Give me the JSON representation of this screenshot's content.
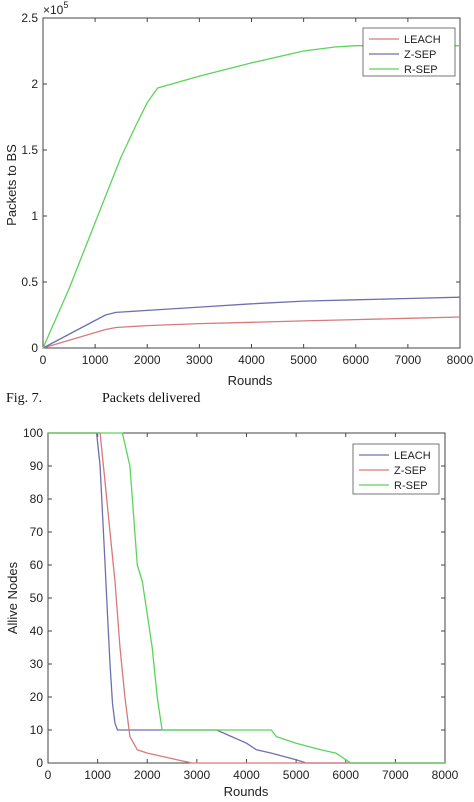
{
  "chart_data": [
    {
      "type": "line",
      "title": "",
      "xlabel": "Rounds",
      "ylabel": "Packets to BS",
      "xlim": [
        0,
        8000
      ],
      "ylim": [
        0,
        250000
      ],
      "xticks": [
        "0",
        "1000",
        "2000",
        "3000",
        "4000",
        "5000",
        "6000",
        "7000",
        "8000"
      ],
      "yticks": [
        "0",
        "0.5",
        "1",
        "1.5",
        "2",
        "2.5"
      ],
      "y_exponent": "×10",
      "y_exponent_power": "5",
      "grid": false,
      "legend_position": "top-right",
      "series": [
        {
          "name": "LEACH",
          "color": "#d9797a",
          "x": [
            0,
            1200,
            1400,
            2000,
            3000,
            4000,
            5000,
            6000,
            7000,
            8000
          ],
          "y": [
            0,
            14000,
            15500,
            17000,
            18500,
            19500,
            20500,
            21500,
            22500,
            23500
          ]
        },
        {
          "name": "Z-SEP",
          "color": "#6f6fb0",
          "x": [
            0,
            1200,
            1400,
            2000,
            3000,
            4000,
            5000,
            6000,
            7000,
            8000
          ],
          "y": [
            0,
            25000,
            27000,
            28500,
            31000,
            33500,
            35500,
            36500,
            37500,
            38500
          ]
        },
        {
          "name": "R-SEP",
          "color": "#5cd35c",
          "x": [
            0,
            500,
            1000,
            1500,
            1800,
            2000,
            2200,
            3000,
            4000,
            5000,
            5600,
            6000,
            8000
          ],
          "y": [
            0,
            45000,
            95000,
            145000,
            170000,
            186000,
            197000,
            206000,
            216000,
            225000,
            228000,
            229000,
            229000
          ]
        }
      ]
    },
    {
      "type": "line",
      "title": "",
      "xlabel": "Rounds",
      "ylabel": "Allive Nodes",
      "xlim": [
        0,
        8000
      ],
      "ylim": [
        0,
        100
      ],
      "xticks": [
        "0",
        "1000",
        "2000",
        "3000",
        "4000",
        "5000",
        "6000",
        "7000",
        "8000"
      ],
      "yticks": [
        "0",
        "10",
        "20",
        "30",
        "40",
        "50",
        "60",
        "70",
        "80",
        "90",
        "100"
      ],
      "grid": false,
      "legend_position": "top-right",
      "series": [
        {
          "name": "LEACH",
          "color": "#6f6fb0",
          "x": [
            0,
            980,
            1050,
            1100,
            1150,
            1200,
            1250,
            1300,
            1350,
            1400,
            2200,
            3400,
            3700,
            4000,
            4200,
            4500,
            5000,
            5200,
            8000
          ],
          "y": [
            100,
            100,
            90,
            75,
            60,
            45,
            30,
            18,
            12,
            10,
            10,
            10,
            8,
            6,
            4,
            3,
            1,
            0,
            0
          ]
        },
        {
          "name": "Z-SEP",
          "color": "#d9797a",
          "x": [
            0,
            1050,
            1150,
            1250,
            1350,
            1450,
            1550,
            1650,
            1800,
            2000,
            2300,
            2600,
            2900,
            8000
          ],
          "y": [
            100,
            100,
            85,
            70,
            55,
            35,
            20,
            8,
            4,
            3,
            2,
            1,
            0,
            0
          ]
        },
        {
          "name": "R-SEP",
          "color": "#5cd35c",
          "x": [
            0,
            1500,
            1650,
            1700,
            1750,
            1800,
            1900,
            2000,
            2100,
            2200,
            2300,
            3400,
            4500,
            4600,
            5000,
            5500,
            5800,
            6000,
            6100,
            8000
          ],
          "y": [
            100,
            100,
            90,
            80,
            70,
            60,
            55,
            45,
            35,
            20,
            10,
            10,
            10,
            8,
            6,
            4,
            3,
            1,
            0,
            0
          ]
        }
      ]
    }
  ],
  "caption": {
    "label": "Fig. 7.",
    "text": "Packets delivered"
  }
}
